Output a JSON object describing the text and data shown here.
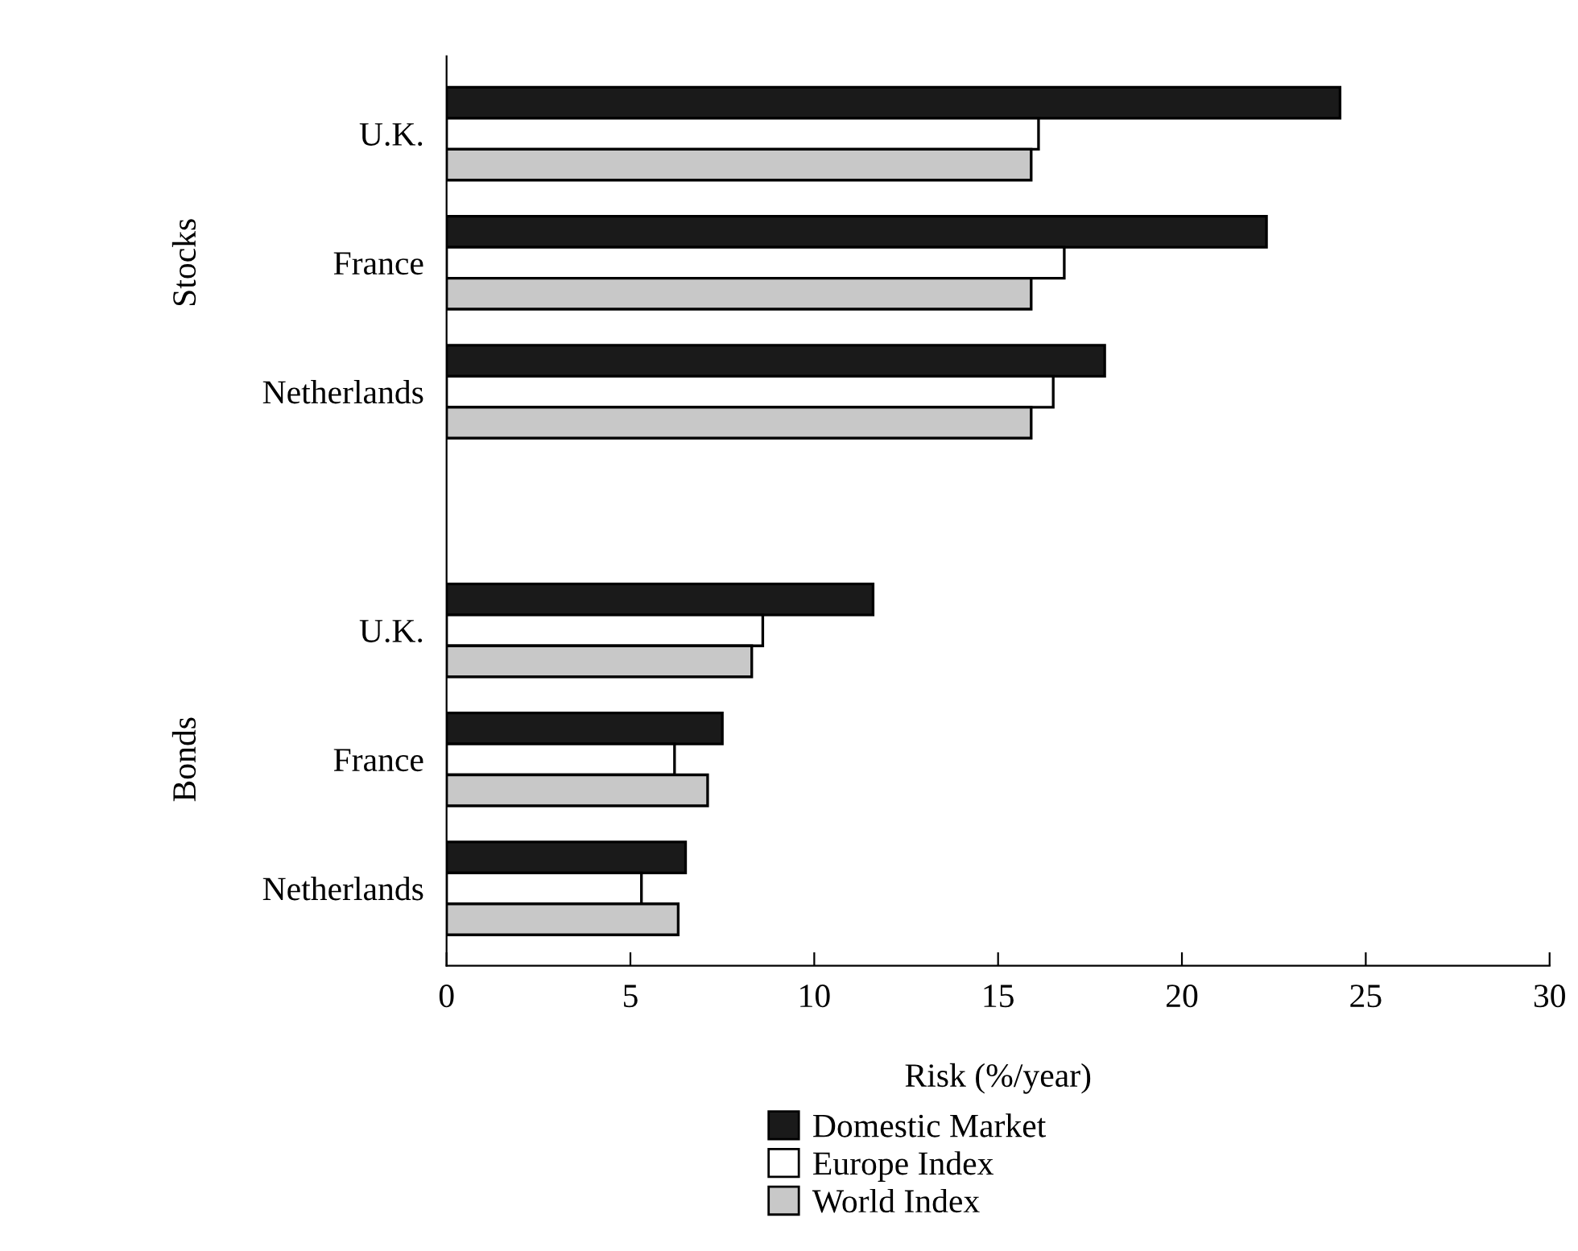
{
  "chart_data": {
    "type": "bar",
    "orientation": "horizontal",
    "categories": [
      "U.K.",
      "France",
      "Netherlands",
      "U.K.",
      "France",
      "Netherlands"
    ],
    "series": [
      {
        "name": "Domestic Market",
        "color": "#1a1a1a",
        "values": [
          24.3,
          22.3,
          17.9,
          11.6,
          7.5,
          6.5
        ]
      },
      {
        "name": "Europe Index",
        "color": "#ffffff",
        "values": [
          16.1,
          16.8,
          16.5,
          8.6,
          6.2,
          5.3
        ]
      },
      {
        "name": "World Index",
        "color": "#c8c8c8",
        "values": [
          15.9,
          15.9,
          15.9,
          8.3,
          7.1,
          6.3
        ]
      }
    ],
    "xlabel": "Risk (%/year)",
    "annotations": [
      "Stocks",
      "Bonds"
    ],
    "xlim": [
      0,
      30
    ],
    "xticks": [
      0,
      5,
      10,
      15,
      20,
      25,
      30
    ],
    "grid": false,
    "legend": "bottom"
  }
}
